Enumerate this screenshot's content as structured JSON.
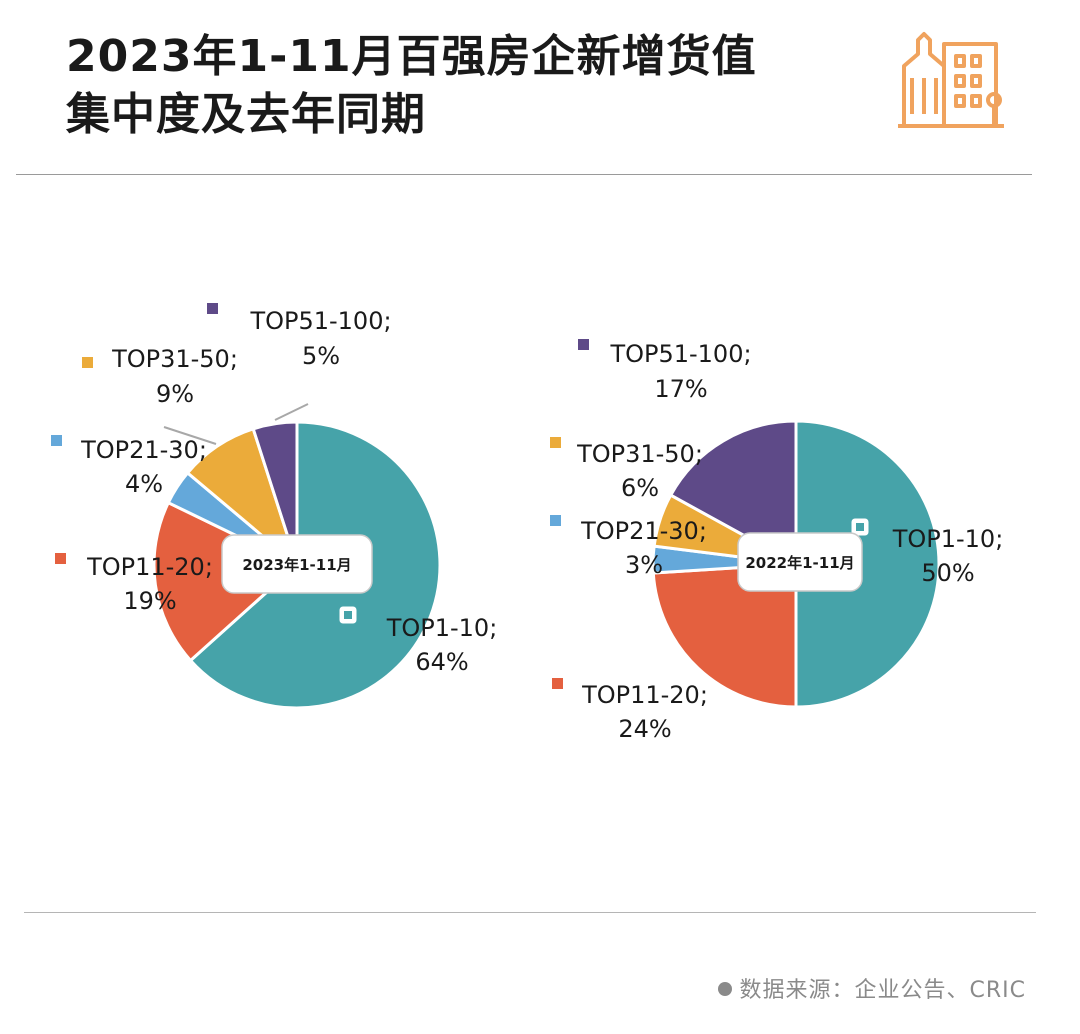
{
  "title": {
    "line1": "2023年1-11月百强房企新增货值",
    "line2": "集中度及去年同期"
  },
  "logo_icon": "buildings-icon",
  "colors": {
    "top1_10": "#46A3A9",
    "top11_20": "#E4603F",
    "top21_30": "#64A8DA",
    "top31_50": "#EBAB3A",
    "top51_100": "#5E4A88",
    "logo": "#F0A35E"
  },
  "chart_data": [
    {
      "type": "pie",
      "center_label": "2023年1-11月",
      "slices": [
        {
          "category": "TOP1-10",
          "label": "TOP1-10;",
          "value": 64,
          "value_label": "64%"
        },
        {
          "category": "TOP11-20",
          "label": "TOP11-20;",
          "value": 19,
          "value_label": "19%"
        },
        {
          "category": "TOP21-30",
          "label": "TOP21-30;",
          "value": 4,
          "value_label": "4%"
        },
        {
          "category": "TOP31-50",
          "label": "TOP31-50;",
          "value": 9,
          "value_label": "9%"
        },
        {
          "category": "TOP51-100",
          "label": "TOP51-100;",
          "value": 5,
          "value_label": "5%"
        }
      ]
    },
    {
      "type": "pie",
      "center_label": "2022年1-11月",
      "slices": [
        {
          "category": "TOP1-10",
          "label": "TOP1-10;",
          "value": 50,
          "value_label": "50%"
        },
        {
          "category": "TOP11-20",
          "label": "TOP11-20;",
          "value": 24,
          "value_label": "24%"
        },
        {
          "category": "TOP21-30",
          "label": "TOP21-30;",
          "value": 3,
          "value_label": "3%"
        },
        {
          "category": "TOP31-50",
          "label": "TOP31-50;",
          "value": 6,
          "value_label": "6%"
        },
        {
          "category": "TOP51-100",
          "label": "TOP51-100;",
          "value": 17,
          "value_label": "17%"
        }
      ]
    }
  ],
  "source": "数据来源：企业公告、CRIC"
}
